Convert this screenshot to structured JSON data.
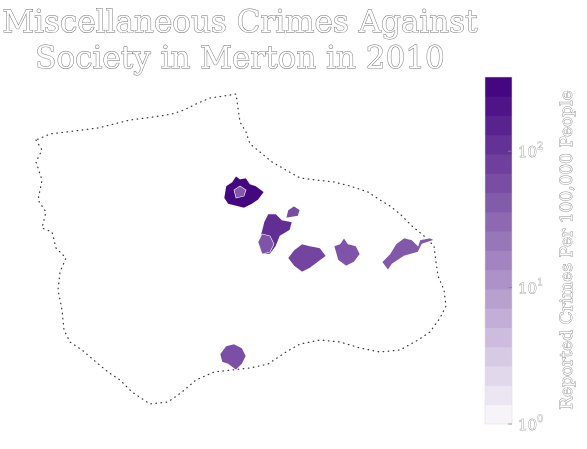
{
  "title": {
    "line1": "Miscellaneous Crimes Against",
    "line2": "Society in Merton in 2010"
  },
  "colorbar": {
    "label": "Reported Crimes Per 100,000 People",
    "scale": "log",
    "range": [
      1,
      350
    ],
    "ticks": [
      {
        "base": "10",
        "exp": "0",
        "value": 1
      },
      {
        "base": "10",
        "exp": "1",
        "value": 10
      },
      {
        "base": "10",
        "exp": "2",
        "value": 100
      }
    ],
    "color_low": "#fcfbfd",
    "color_high": "#3f007d"
  },
  "chart_data": {
    "type": "heatmap",
    "title": "Miscellaneous Crimes Against Society in Merton in 2010",
    "colorbar_label": "Reported Crimes Per 100,000 People",
    "regions": [
      {
        "name": "",
        "value": 300
      },
      {
        "name": "",
        "value": 120
      },
      {
        "name": "",
        "value": 60
      },
      {
        "name": "",
        "value": 70
      },
      {
        "name": "",
        "value": 50
      },
      {
        "name": "",
        "value": 45
      },
      {
        "name": "",
        "value": 55
      },
      {
        "name": "",
        "value": 50
      },
      {
        "name": "",
        "value": 45
      }
    ]
  }
}
